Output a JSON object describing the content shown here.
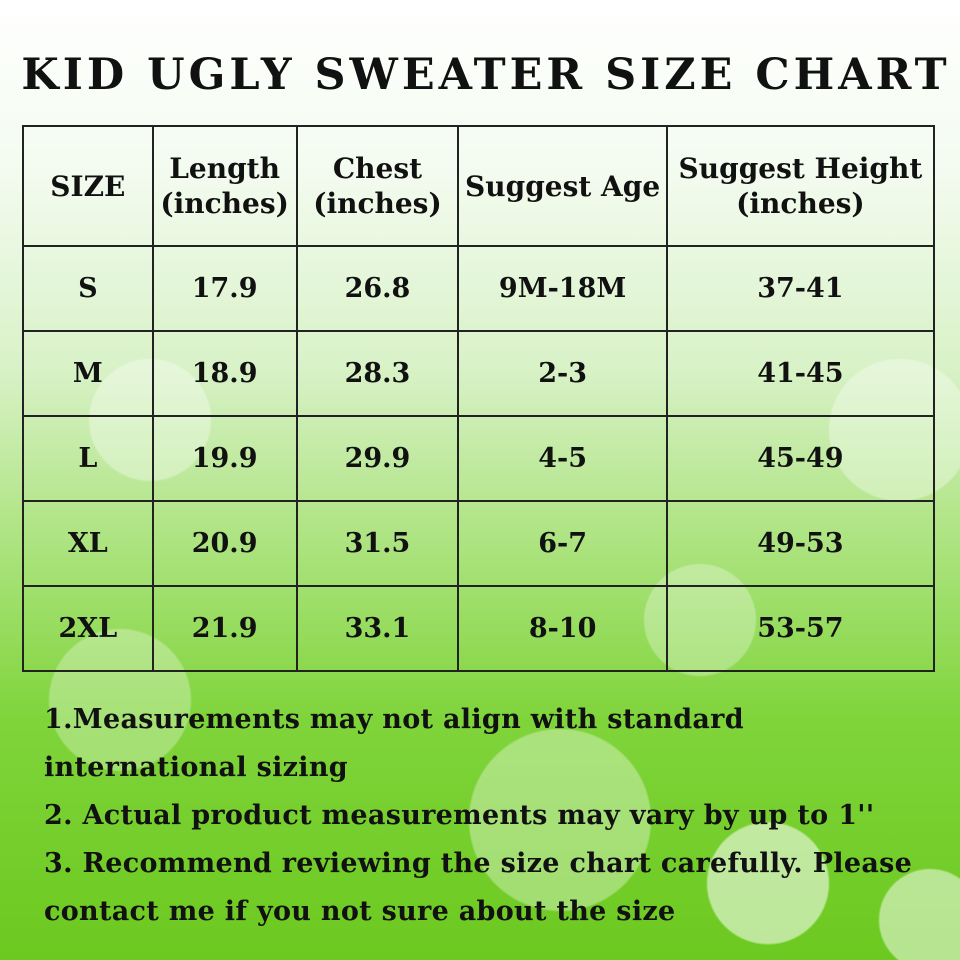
{
  "title": "KID UGLY SWEATER SIZE CHART",
  "table": {
    "headers": [
      "SIZE",
      "Length (inches)",
      "Chest (inches)",
      "Suggest Age",
      "Suggest Height (inches)"
    ],
    "rows": [
      [
        "S",
        "17.9",
        "26.8",
        "9M-18M",
        "37-41"
      ],
      [
        "M",
        "18.9",
        "28.3",
        "2-3",
        "41-45"
      ],
      [
        "L",
        "19.9",
        "29.9",
        "4-5",
        "45-49"
      ],
      [
        "XL",
        "20.9",
        "31.5",
        "6-7",
        "49-53"
      ],
      [
        "2XL",
        "21.9",
        "33.1",
        "8-10",
        "53-57"
      ]
    ]
  },
  "notes": [
    "1.Measurements may not align with standard",
    "international sizing",
    "2. Actual product measurements may vary by up to 1''",
    "3. Recommend reviewing the size chart carefully. Please",
    "contact me if you not sure about the size"
  ]
}
